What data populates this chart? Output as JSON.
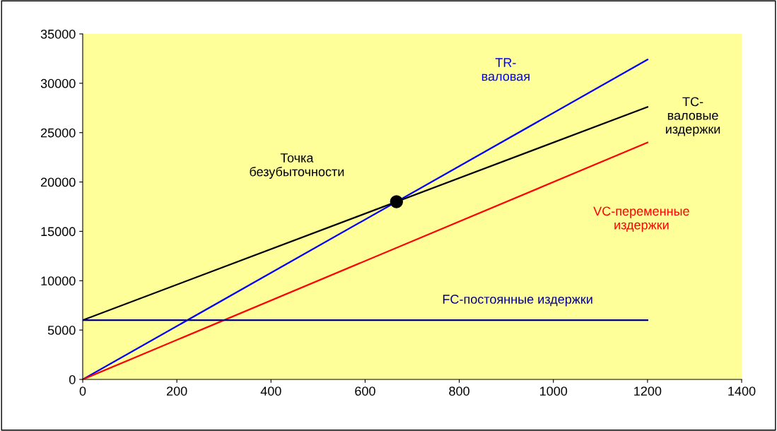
{
  "chart_data": {
    "type": "line",
    "x": [
      0,
      1200
    ],
    "xlim": [
      0,
      1400
    ],
    "xticks": [
      0,
      200,
      400,
      600,
      800,
      1000,
      1200,
      1400
    ],
    "ylim": [
      0,
      35000
    ],
    "yticks": [
      0,
      5000,
      10000,
      15000,
      20000,
      25000,
      30000,
      35000
    ],
    "grid": false,
    "legend": false,
    "marker": "none",
    "line_style": "solid",
    "series": [
      {
        "name": "TR-\nваловая",
        "color": "#0000ff",
        "values": [
          0,
          32400
        ]
      },
      {
        "name": "TC-\nваловые\nиздержки",
        "color": "#000000",
        "values": [
          6000,
          27600
        ]
      },
      {
        "name": "VC-переменные\nиздержки",
        "color": "#ff0000",
        "values": [
          0,
          24000
        ]
      },
      {
        "name": "FC-постоянные издержки",
        "color": "#000080",
        "values": [
          6000,
          6000
        ]
      },
      {
        "type": "scatter",
        "marker": "circle",
        "color": "#000000",
        "x": [
          666.67
        ],
        "values": [
          18000
        ]
      }
    ],
    "annotations": [
      "Точка\nбезубыточности"
    ]
  }
}
